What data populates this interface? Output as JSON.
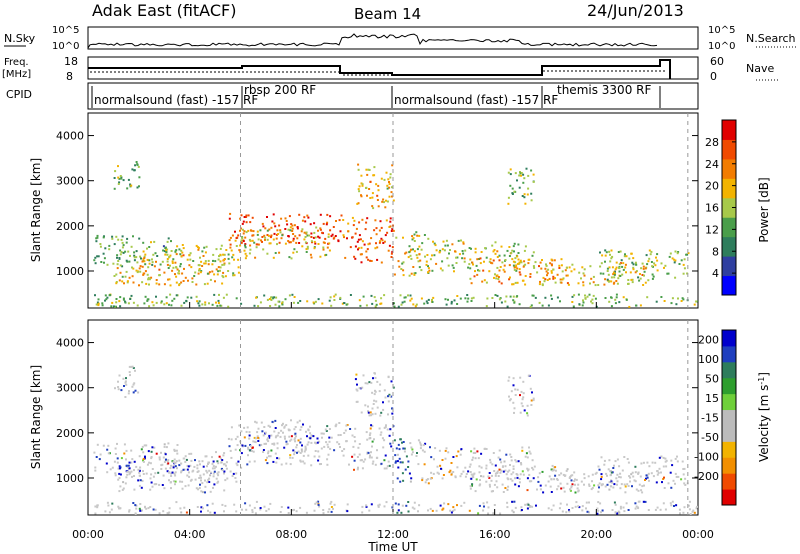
{
  "header": {
    "station": "Adak East (fitACF)",
    "beam": "Beam 14",
    "date": "24/Jun/2013"
  },
  "noise_panel": {
    "left_label": "N.Sky",
    "right_label": "N.Search",
    "ticks_left": [
      "10^5",
      "10^0"
    ],
    "ticks_right": [
      "10^5",
      "10^0"
    ]
  },
  "freq_panel": {
    "left_label_line1": "Freq.",
    "left_label_line2": "[MHz]",
    "right_label": "Nave",
    "ticks_left": [
      "18",
      "8"
    ],
    "ticks_right": [
      "60",
      "0"
    ]
  },
  "cpid_panel": {
    "label": "CPID",
    "segments": [
      {
        "text": "normalsound (fast) -157 RF",
        "start_hr": 0.0
      },
      {
        "text": "rbsp 200 RF",
        "start_hr": 6.0
      },
      {
        "text": "normalsound (fast) -157 RF",
        "start_hr": 12.0
      },
      {
        "text": "themis 3300 RF",
        "start_hr": 18.0
      }
    ]
  },
  "colors": {
    "power_scale": [
      "#0000ff",
      "#2f3fa0",
      "#2e7d5c",
      "#4a9e4a",
      "#a7c94a",
      "#f2b300",
      "#f27c00",
      "#f04a00",
      "#e00000"
    ],
    "velocity_scale": [
      "#e00000",
      "#f04a00",
      "#f28f00",
      "#f2b300",
      "#bcbcbc",
      "#bcbcbc",
      "#6fcf3a",
      "#2e9e2e",
      "#2e7d5c",
      "#1f3fbf",
      "#0000cc"
    ],
    "noise_line": "#000000"
  },
  "chart_data": [
    {
      "type": "heatmap",
      "name": "power",
      "ylabel": "Slant Range [km]",
      "x_range_hr": [
        0,
        24
      ],
      "ylim": [
        180,
        4500
      ],
      "yticks": [
        "1000",
        "2000",
        "3000",
        "4000"
      ],
      "colorbar_label": "Power [dB]",
      "colorbar_ticks": [
        "4",
        "8",
        "12",
        "16",
        "20",
        "24",
        "28"
      ],
      "colorbar_range": [
        0,
        32
      ]
    },
    {
      "type": "heatmap",
      "name": "velocity",
      "ylabel": "Slant Range [km]",
      "x_range_hr": [
        0,
        24
      ],
      "ylim": [
        180,
        4500
      ],
      "yticks": [
        "1000",
        "2000",
        "3000",
        "4000"
      ],
      "colorbar_label": "Velocity [m s^-1]",
      "colorbar_ticks": [
        "-200",
        "-100",
        "-50",
        "-15",
        "15",
        "50",
        "100",
        "200"
      ]
    }
  ],
  "x_axis": {
    "title": "Time UT",
    "ticks": [
      "00:00",
      "04:00",
      "08:00",
      "12:00",
      "16:00",
      "20:00",
      "00:00"
    ]
  }
}
